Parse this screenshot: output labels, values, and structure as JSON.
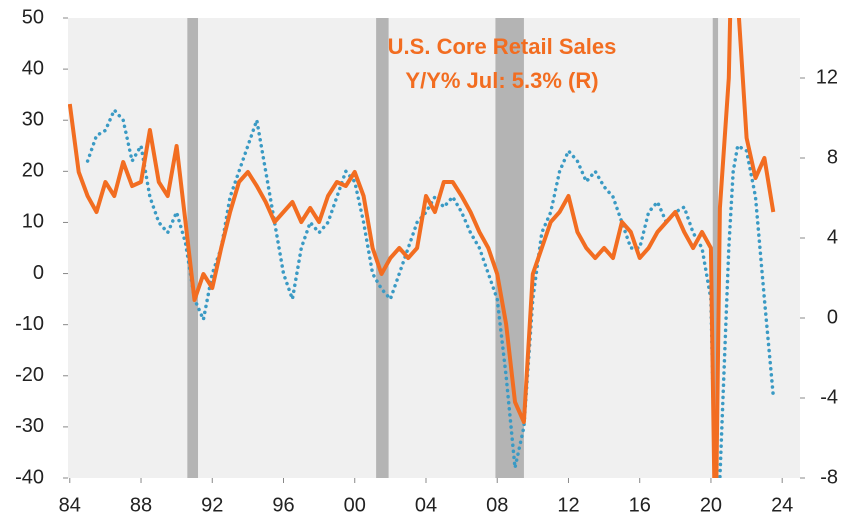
{
  "chart_data": {
    "type": "line",
    "title": "U.S. Core Retail Sales",
    "subtitle": "Y/Y%   Jul: 5.3% (R)",
    "x": [
      1984,
      1984.5,
      1985,
      1985.5,
      1986,
      1986.5,
      1987,
      1987.5,
      1988,
      1988.5,
      1989,
      1989.5,
      1990,
      1990.5,
      1991,
      1991.5,
      1992,
      1992.5,
      1993,
      1993.5,
      1994,
      1994.5,
      1995,
      1995.5,
      1996,
      1996.5,
      1997,
      1997.5,
      1998,
      1998.5,
      1999,
      1999.5,
      2000,
      2000.5,
      2001,
      2001.5,
      2002,
      2002.5,
      2003,
      2003.5,
      2004,
      2004.5,
      2005,
      2005.5,
      2006,
      2006.5,
      2007,
      2007.5,
      2008,
      2008.5,
      2009,
      2009.5,
      2010,
      2010.5,
      2011,
      2011.5,
      2012,
      2012.5,
      2013,
      2013.5,
      2014,
      2014.5,
      2015,
      2015.5,
      2016,
      2016.5,
      2017,
      2017.5,
      2018,
      2018.5,
      2019,
      2019.5,
      2020,
      2020.25,
      2020.5,
      2021,
      2021.25,
      2021.5,
      2022,
      2022.5,
      2023,
      2023.5
    ],
    "series": [
      {
        "color": "#3a9ac4",
        "style": "dotted",
        "axis": "y",
        "values": [
          null,
          null,
          22,
          27,
          28,
          32,
          30,
          22,
          25,
          15,
          10,
          8,
          12,
          6,
          -5,
          -9,
          0,
          5,
          15,
          20,
          25,
          30,
          20,
          10,
          0,
          -5,
          5,
          10,
          8,
          10,
          15,
          20,
          18,
          10,
          0,
          -3,
          -5,
          0,
          5,
          10,
          12,
          15,
          13,
          15,
          12,
          8,
          5,
          0,
          -5,
          -20,
          -38,
          -30,
          -5,
          8,
          12,
          20,
          24,
          22,
          18,
          20,
          17,
          15,
          10,
          5,
          5,
          12,
          14,
          10,
          12,
          13,
          8,
          5,
          -5,
          -45,
          -40,
          5,
          20,
          25,
          24,
          15,
          -5,
          -24
        ]
      },
      {
        "color": "#f26d21",
        "style": "solid",
        "axis": "y2",
        "values": [
          10.7,
          7.3,
          6.1,
          5.3,
          6.8,
          6.1,
          7.8,
          6.6,
          6.8,
          9.4,
          6.8,
          6.1,
          8.6,
          4.8,
          0.9,
          2.2,
          1.5,
          3.5,
          5.3,
          6.8,
          7.3,
          6.6,
          5.8,
          4.8,
          5.3,
          5.8,
          4.8,
          5.5,
          4.8,
          6.1,
          6.8,
          6.6,
          7.3,
          6.1,
          3.5,
          2.2,
          3.0,
          3.5,
          3.0,
          3.5,
          6.1,
          5.3,
          6.8,
          6.8,
          6.1,
          5.3,
          4.3,
          3.5,
          2.2,
          -0.3,
          -4.2,
          -5.2,
          2.2,
          3.5,
          4.8,
          5.3,
          6.1,
          4.3,
          3.5,
          3.0,
          3.5,
          3.0,
          4.8,
          4.3,
          3.0,
          3.5,
          4.3,
          4.8,
          5.3,
          4.3,
          3.5,
          4.3,
          3.5,
          -12,
          5.5,
          12,
          22,
          16,
          9,
          7,
          8,
          5.3
        ]
      }
    ],
    "recessions": [
      [
        1990.6,
        1991.2
      ],
      [
        2001.2,
        2001.9
      ],
      [
        2007.9,
        2009.5
      ],
      [
        2020.1,
        2020.4
      ]
    ],
    "recession_color": "#b4b4b4",
    "background": "#f0f0f0",
    "xlim": [
      1983.9,
      2025
    ],
    "xticks": [
      {
        "value": 1984,
        "label": "84"
      },
      {
        "value": 1988,
        "label": "88"
      },
      {
        "value": 1992,
        "label": "92"
      },
      {
        "value": 1996,
        "label": "96"
      },
      {
        "value": 2000,
        "label": "00"
      },
      {
        "value": 2004,
        "label": "04"
      },
      {
        "value": 2008,
        "label": "08"
      },
      {
        "value": 2012,
        "label": "12"
      },
      {
        "value": 2016,
        "label": "16"
      },
      {
        "value": 2020,
        "label": "20"
      },
      {
        "value": 2024,
        "label": "24"
      }
    ],
    "ylim": [
      -40,
      50
    ],
    "yticks": [
      -40,
      -30,
      -20,
      -10,
      0,
      10,
      20,
      30,
      40,
      50
    ],
    "y2lim": [
      -8,
      15
    ],
    "y2ticks": [
      -8,
      -4,
      0,
      4,
      8,
      12
    ],
    "grid": false
  }
}
